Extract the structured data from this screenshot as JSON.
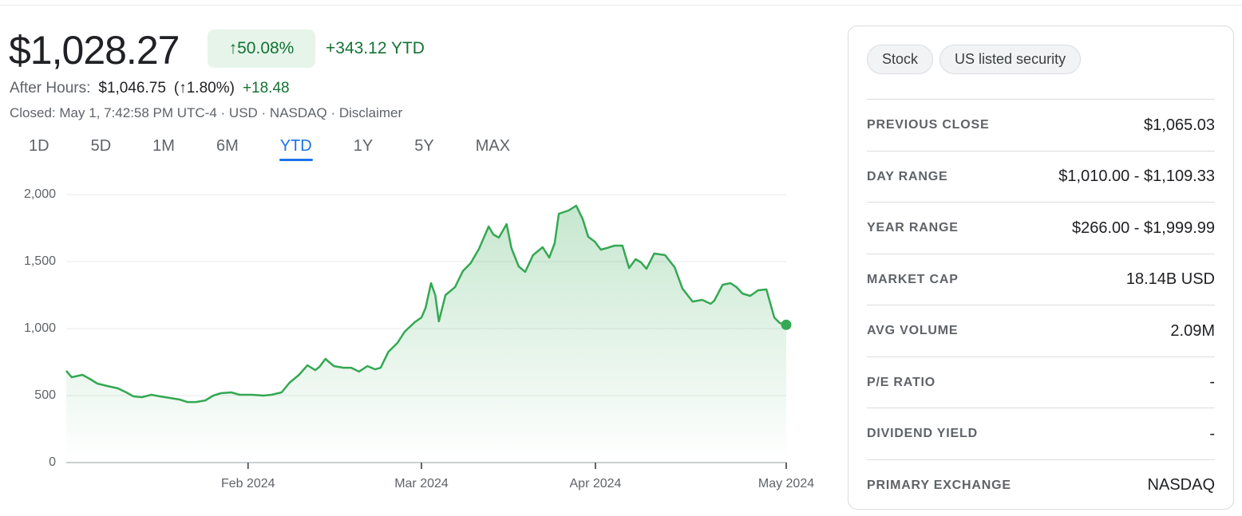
{
  "header": {
    "price": "$1,028.27",
    "change_percent": "↑50.08%",
    "change_ytd": "+343.12 YTD"
  },
  "after_hours": {
    "label": "After Hours:",
    "price": "$1,046.75",
    "change_percent": "(↑1.80%)",
    "change": "+18.48"
  },
  "status": "Closed: May 1, 7:42:58 PM UTC-4 · USD · NASDAQ · Disclaimer",
  "tabs": {
    "items": [
      "1D",
      "5D",
      "1M",
      "6M",
      "YTD",
      "1Y",
      "5Y",
      "MAX"
    ],
    "selected": "YTD"
  },
  "chart_data": {
    "type": "area",
    "color": "#34a853",
    "grid": true,
    "x": [
      0,
      0.9,
      2.7,
      3.9,
      5.2,
      6.9,
      8.6,
      10.0,
      11.2,
      12.6,
      14.2,
      15.6,
      17.3,
      18.9,
      20.2,
      21.6,
      23.2,
      24.5,
      25.8,
      27.5,
      28.9,
      30.9,
      32.9,
      34.2,
      35.9,
      37.2,
      38.8,
      40.2,
      41.5,
      42.2,
      43.2,
      44.6,
      46.2,
      47.5,
      48.8,
      50.2,
      51.5,
      52.4,
      53.7,
      55.2,
      56.4,
      58.1,
      59.2,
      59.9,
      60.8,
      61.5,
      62.1,
      63.2,
      64.8,
      66.1,
      67.4,
      68.8,
      70.4,
      71.2,
      72.1,
      73.4,
      74.2,
      75.4,
      76.5,
      77.8,
      79.4,
      80.5,
      81.4,
      82.1,
      83.7,
      85.0,
      86.1,
      87.0,
      88.1,
      89.1,
      90.1,
      91.4,
      92.7,
      93.8,
      94.9,
      95.8,
      96.7,
      98.0,
      99.8,
      101.4,
      102.7,
      104.4,
      106.0,
      107.4,
      108.0,
      109.4,
      110.7,
      111.7,
      112.7,
      114.0,
      115.3,
      116.7,
      118.0,
      118.9,
      120
    ],
    "values": [
      685,
      637,
      655,
      625,
      589,
      571,
      554,
      524,
      494,
      488,
      506,
      494,
      482,
      470,
      452,
      452,
      464,
      500,
      518,
      524,
      506,
      506,
      500,
      506,
      524,
      595,
      655,
      726,
      690,
      714,
      774,
      720,
      708,
      708,
      679,
      720,
      696,
      708,
      827,
      893,
      976,
      1048,
      1083,
      1155,
      1339,
      1250,
      1054,
      1250,
      1310,
      1429,
      1488,
      1595,
      1762,
      1702,
      1679,
      1780,
      1601,
      1464,
      1423,
      1548,
      1607,
      1530,
      1637,
      1857,
      1881,
      1917,
      1815,
      1685,
      1649,
      1589,
      1601,
      1619,
      1619,
      1452,
      1518,
      1494,
      1446,
      1560,
      1548,
      1458,
      1298,
      1202,
      1214,
      1185,
      1208,
      1327,
      1339,
      1310,
      1262,
      1244,
      1286,
      1292,
      1083,
      1042,
      1028
    ],
    "xlim": [
      0,
      120
    ],
    "xticks": [
      {
        "value": 30.3,
        "label": "Feb 2024"
      },
      {
        "value": 59.2,
        "label": "Mar 2024"
      },
      {
        "value": 88.2,
        "label": "Apr 2024"
      },
      {
        "value": 120,
        "label": "May 2024"
      }
    ],
    "ylim": [
      0,
      2000
    ],
    "yticks": [
      0,
      500,
      {
        "value": 1000,
        "label": "1,000"
      },
      {
        "value": 1500,
        "label": "1,500"
      },
      {
        "value": 2000,
        "label": "2,000"
      }
    ]
  },
  "chips": [
    "Stock",
    "US listed security"
  ],
  "stats": [
    {
      "label": "PREVIOUS CLOSE",
      "value": "$1,065.03"
    },
    {
      "label": "DAY RANGE",
      "value": "$1,010.00 - $1,109.33"
    },
    {
      "label": "YEAR RANGE",
      "value": "$266.00 - $1,999.99"
    },
    {
      "label": "MARKET CAP",
      "value": "18.14B USD"
    },
    {
      "label": "AVG VOLUME",
      "value": "2.09M"
    },
    {
      "label": "P/E RATIO",
      "value": "-"
    },
    {
      "label": "DIVIDEND YIELD",
      "value": "-"
    },
    {
      "label": "PRIMARY EXCHANGE",
      "value": "NASDAQ"
    }
  ]
}
